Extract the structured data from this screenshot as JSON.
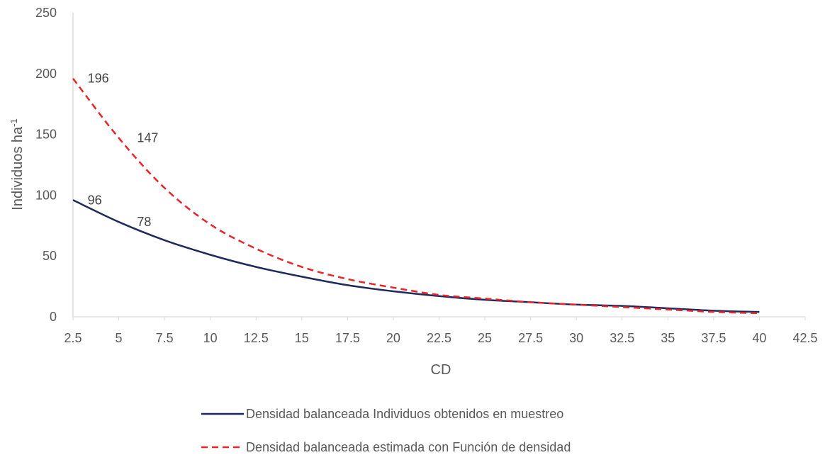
{
  "chart_data": {
    "type": "line",
    "xlabel": "CD",
    "ylabel": "Individuos ha",
    "ylabel_superscript": "-1",
    "xlim": [
      2.5,
      42.5
    ],
    "ylim": [
      0,
      250
    ],
    "xticks": [
      "2.5",
      "5",
      "7.5",
      "10",
      "12.5",
      "15",
      "17.5",
      "20",
      "22.5",
      "25",
      "27.5",
      "30",
      "32.5",
      "35",
      "37.5",
      "40",
      "42.5"
    ],
    "yticks": [
      "0",
      "50",
      "100",
      "150",
      "200",
      "250"
    ],
    "grid": false,
    "legend_position": "bottom",
    "series": [
      {
        "name": "Densidad balanceada Individuos obtenidos en muestreo",
        "color": "#1f2a5c",
        "style": "solid",
        "x": [
          2.5,
          5,
          7.5,
          10,
          12.5,
          15,
          17.5,
          20,
          22.5,
          25,
          27.5,
          30,
          32.5,
          35,
          37.5,
          40
        ],
        "y": [
          96,
          78,
          63,
          51,
          41,
          33,
          26,
          21,
          17,
          14,
          12,
          10,
          9,
          7,
          5,
          4
        ]
      },
      {
        "name": "Densidad balanceada estimada con Función de densidad",
        "color": "#e8262a",
        "style": "dashed",
        "x": [
          2.5,
          5,
          7.5,
          10,
          12.5,
          15,
          17.5,
          20,
          22.5,
          25,
          27.5,
          30,
          32.5,
          35,
          37.5,
          40
        ],
        "y": [
          196,
          147,
          106,
          76,
          56,
          41,
          31,
          24,
          18,
          15,
          12,
          10,
          8,
          6,
          4,
          3
        ]
      }
    ],
    "annotations": [
      {
        "text": "196",
        "x": 3.3,
        "y": 196
      },
      {
        "text": "147",
        "x": 6.0,
        "y": 147
      },
      {
        "text": "96",
        "x": 3.3,
        "y": 96
      },
      {
        "text": "78",
        "x": 6.0,
        "y": 78
      }
    ]
  }
}
